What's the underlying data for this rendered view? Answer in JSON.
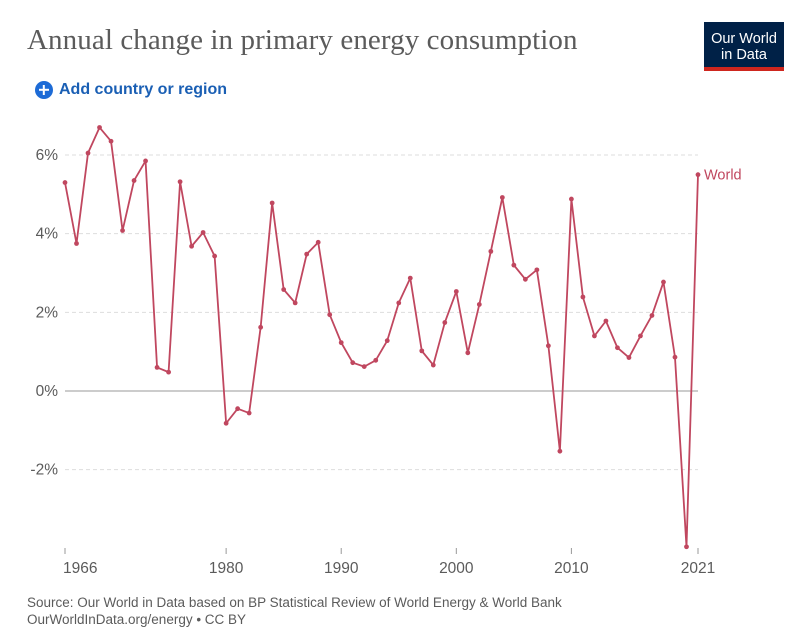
{
  "header": {
    "title": "Annual change in primary energy consumption",
    "logo_line1": "Our World",
    "logo_line2": "in Data"
  },
  "controls": {
    "add_label": "Add country or region"
  },
  "footer": {
    "source": "Source: Our World in Data based on BP Statistical Review of World Energy & World Bank",
    "license": "OurWorldInData.org/energy • CC BY"
  },
  "colors": {
    "series": "#c0475f",
    "grid": "#dddddd",
    "zero": "#9a9a9a",
    "axis_text": "#5b5b5b"
  },
  "chart_data": {
    "type": "line",
    "title": "Annual change in primary energy consumption",
    "xlabel": "",
    "ylabel": "",
    "xlim": [
      1966,
      2021
    ],
    "ylim": [
      -4,
      6
    ],
    "x_ticks": [
      1966,
      1980,
      1990,
      2000,
      2010,
      2021
    ],
    "y_ticks": [
      6,
      4,
      2,
      0,
      -2
    ],
    "y_tick_labels": [
      "6%",
      "4%",
      "2%",
      "0%",
      "-2%"
    ],
    "grid": true,
    "legend": "right end label",
    "series": [
      {
        "name": "World",
        "x": [
          1966,
          1967,
          1968,
          1969,
          1970,
          1971,
          1972,
          1973,
          1974,
          1975,
          1976,
          1977,
          1978,
          1979,
          1980,
          1981,
          1982,
          1983,
          1984,
          1985,
          1986,
          1987,
          1988,
          1989,
          1990,
          1991,
          1992,
          1993,
          1994,
          1995,
          1996,
          1997,
          1998,
          1999,
          2000,
          2001,
          2002,
          2003,
          2004,
          2005,
          2006,
          2007,
          2008,
          2009,
          2010,
          2011,
          2012,
          2013,
          2014,
          2015,
          2016,
          2017,
          2018,
          2019,
          2020,
          2021
        ],
        "values": [
          5.3,
          3.75,
          6.05,
          6.7,
          6.35,
          4.08,
          5.35,
          5.85,
          0.6,
          0.48,
          5.32,
          3.68,
          4.03,
          3.43,
          -0.82,
          -0.45,
          -0.56,
          1.62,
          4.78,
          2.58,
          2.24,
          3.48,
          3.78,
          1.94,
          1.23,
          0.72,
          0.62,
          0.78,
          1.28,
          2.24,
          2.87,
          1.02,
          0.66,
          1.74,
          2.53,
          0.97,
          2.2,
          3.55,
          4.92,
          3.2,
          2.84,
          3.08,
          1.15,
          -1.53,
          4.88,
          2.39,
          1.4,
          1.78,
          1.1,
          0.85,
          1.4,
          1.92,
          2.77,
          0.86,
          -3.96,
          5.5
        ]
      }
    ]
  }
}
